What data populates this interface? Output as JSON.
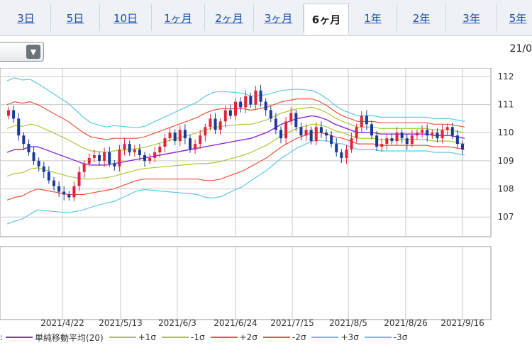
{
  "tabs": [
    {
      "label": "3日",
      "active": false
    },
    {
      "label": "5日",
      "active": false
    },
    {
      "label": "10日",
      "active": false
    },
    {
      "label": "1ヶ月",
      "active": false
    },
    {
      "label": "2ヶ月",
      "active": false
    },
    {
      "label": "3ヶ月",
      "active": false
    },
    {
      "label": "6ヶ月",
      "active": true
    },
    {
      "label": "1年",
      "active": false
    },
    {
      "label": "2年",
      "active": false
    },
    {
      "label": "3年",
      "active": false
    },
    {
      "label": "5年",
      "active": false
    }
  ],
  "header": {
    "date_fragment": "21/0"
  },
  "icons": {
    "dropdown": "chevron-down-icon"
  },
  "colors": {
    "up": "#e0253a",
    "down": "#1a3a96",
    "sma": "#8e2bd1",
    "sigma1": "#a8c838",
    "sigma2": "#e8553a",
    "sigma3": "#5ec8e0",
    "grid": "#c9c9c9"
  },
  "chart_data": {
    "type": "candlestick",
    "x_tick_labels": [
      "2021/4/22",
      "2021/5/13",
      "2021/6/3",
      "2021/6/24",
      "2021/7/15",
      "2021/8/5",
      "2021/8/26",
      "2021/9/16"
    ],
    "y_tick_labels": [
      "112",
      "111",
      "110",
      "109",
      "108",
      "107"
    ],
    "ylim": [
      106.3,
      112.3
    ],
    "grid": true,
    "legend_entries": [
      "単純移動平均(20)",
      "+1σ",
      "-1σ",
      "+2σ",
      "-2σ",
      "+3σ",
      "-3σ"
    ],
    "close": [
      110.8,
      110.5,
      109.9,
      109.6,
      109.3,
      109.0,
      108.8,
      108.6,
      108.3,
      108.1,
      107.9,
      107.8,
      107.7,
      108.1,
      108.6,
      108.9,
      109.1,
      109.2,
      109.0,
      109.3,
      108.9,
      108.8,
      109.4,
      109.6,
      109.3,
      109.4,
      109.2,
      109.0,
      109.1,
      109.3,
      109.5,
      109.8,
      110.0,
      109.7,
      110.1,
      109.8,
      109.4,
      109.6,
      109.9,
      110.2,
      110.5,
      110.1,
      110.4,
      110.8,
      110.6,
      111.1,
      110.9,
      111.3,
      111.0,
      111.5,
      111.1,
      110.8,
      110.5,
      110.1,
      109.8,
      110.4,
      110.7,
      110.2,
      109.9,
      110.1,
      109.7,
      110.2,
      110.0,
      109.9,
      109.6,
      109.3,
      109.1,
      109.4,
      109.8,
      110.2,
      110.6,
      110.3,
      109.9,
      109.5,
      109.6,
      109.8,
      109.7,
      110.0,
      109.8,
      109.6,
      109.9,
      110.0,
      110.1,
      109.9,
      110.0,
      109.8,
      110.1,
      110.2,
      109.9,
      109.6,
      109.4
    ],
    "sma_20": [
      109.3,
      109.4,
      109.4,
      109.5,
      109.5,
      109.4,
      109.3,
      109.2,
      109.1,
      109.0,
      108.9,
      108.85,
      108.85,
      108.85,
      108.9,
      108.95,
      109.0,
      109.05,
      109.1,
      109.15,
      109.2,
      109.25,
      109.3,
      109.35,
      109.4,
      109.45,
      109.5,
      109.55,
      109.6,
      109.65,
      109.7,
      109.75,
      109.8,
      109.9,
      110.0,
      110.15,
      110.3,
      110.4,
      110.5,
      110.55,
      110.6,
      110.55,
      110.45,
      110.3,
      110.2,
      110.1,
      110.0,
      110.0,
      110.0,
      109.95,
      109.95,
      109.95,
      109.95,
      109.95,
      109.95,
      109.95,
      109.9,
      109.9,
      109.9,
      109.85,
      109.8
    ],
    "band_width_2sigma": [
      1.7,
      1.7,
      1.65,
      1.6,
      1.5,
      1.45,
      1.4,
      1.35,
      1.3,
      1.2,
      1.1,
      1.0,
      0.95,
      0.9,
      0.9,
      0.85,
      0.8,
      0.75,
      0.75,
      0.8,
      0.85,
      0.9,
      0.95,
      1.0,
      1.05,
      1.1,
      1.2,
      1.25,
      1.25,
      1.2,
      1.15,
      1.1,
      1.0,
      0.95,
      0.9,
      0.85,
      0.8,
      0.75,
      0.7,
      0.65,
      0.6,
      0.55,
      0.5,
      0.45,
      0.4,
      0.4,
      0.4,
      0.4,
      0.4,
      0.4,
      0.4,
      0.4,
      0.4,
      0.4,
      0.4,
      0.4,
      0.4,
      0.4,
      0.4,
      0.4,
      0.4
    ]
  }
}
